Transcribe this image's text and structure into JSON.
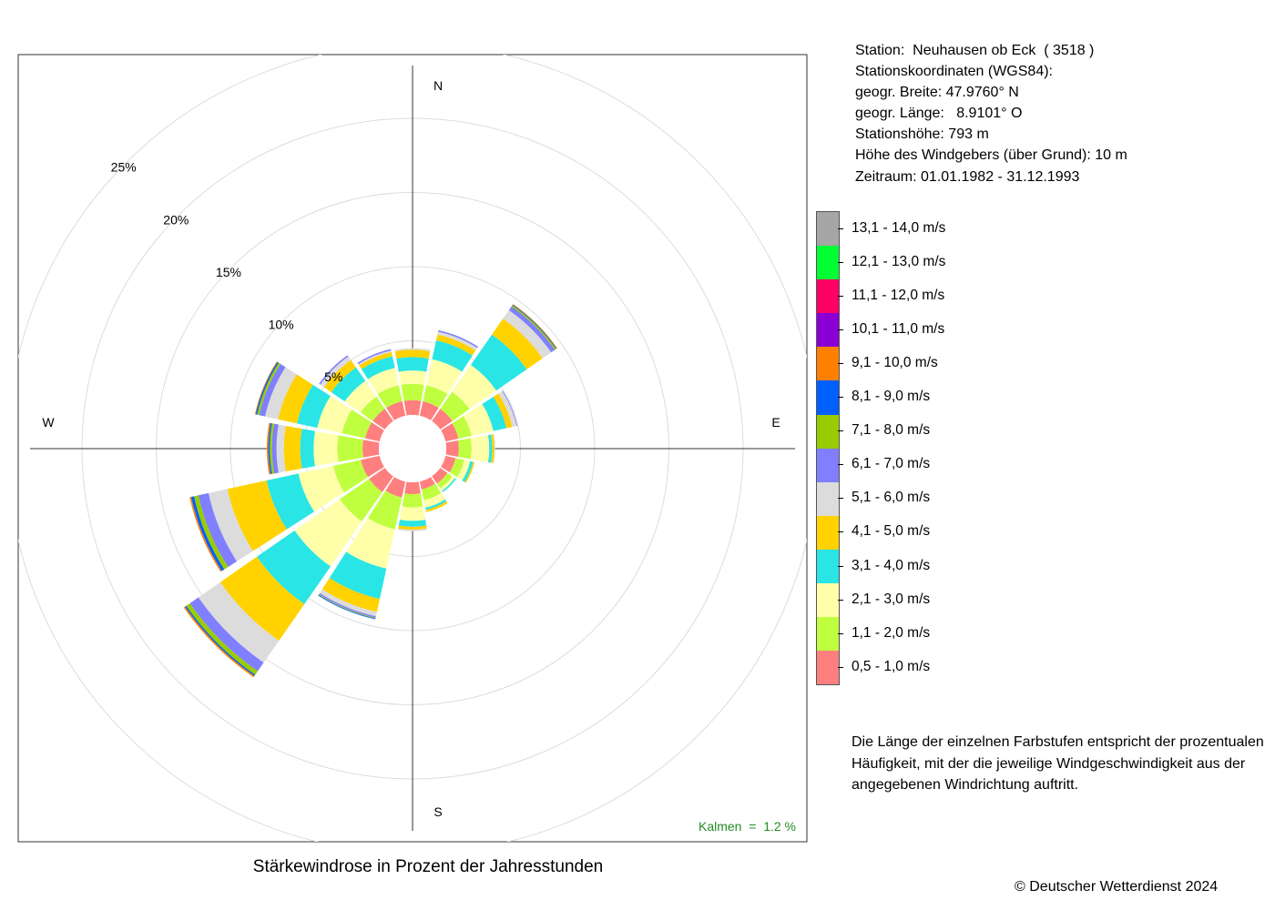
{
  "chart_data": {
    "type": "windrose",
    "title": "Stärkewindrose in Prozent der Jahresstunden",
    "directions": [
      "N",
      "NNO",
      "NO",
      "ONO",
      "O",
      "OSO",
      "SO",
      "SSO",
      "S",
      "SSW",
      "SW",
      "WSW",
      "W",
      "WNW",
      "NW",
      "NNW"
    ],
    "direction_labels": {
      "north": "N",
      "east": "E",
      "south": "S",
      "west": "W"
    },
    "radial_ticks": [
      "5%",
      "10%",
      "15%",
      "20%",
      "25%"
    ],
    "radial_tick_values": [
      5,
      10,
      15,
      20,
      25
    ],
    "speed_classes": [
      {
        "label": "0,5 - 1,0 m/s",
        "color": "#FF7F7F"
      },
      {
        "label": "1,1 - 2,0 m/s",
        "color": "#BFFF3F"
      },
      {
        "label": "2,1 - 3,0 m/s",
        "color": "#FFFFAA"
      },
      {
        "label": "3,1 - 4,0 m/s",
        "color": "#2AE5E5"
      },
      {
        "label": "4,1 - 5,0 m/s",
        "color": "#FFD200"
      },
      {
        "label": "5,1 - 6,0 m/s",
        "color": "#DCDCDC"
      },
      {
        "label": "6,1 - 7,0 m/s",
        "color": "#7F7FFF"
      },
      {
        "label": "7,1 - 8,0 m/s",
        "color": "#99CC00"
      },
      {
        "label": "8,1 - 9,0 m/s",
        "color": "#005FFF"
      },
      {
        "label": "9,1 - 10,0 m/s",
        "color": "#FF8000"
      },
      {
        "label": "10,1 - 11,0 m/s",
        "color": "#8A00D4"
      },
      {
        "label": "11,1 - 12,0 m/s",
        "color": "#FF0066"
      },
      {
        "label": "12,1 - 13,0 m/s",
        "color": "#00FF33"
      },
      {
        "label": "13,1 - 14,0 m/s",
        "color": "#A6A6A6"
      }
    ],
    "series": [
      {
        "direction": "N",
        "cumulative_percent": [
          1.0,
          2.1,
          3.0,
          3.9,
          4.4,
          4.5
        ]
      },
      {
        "direction": "NNO",
        "cumulative_percent": [
          1.0,
          2.1,
          3.9,
          5.2,
          5.6,
          5.8,
          5.9
        ]
      },
      {
        "direction": "NO",
        "cumulative_percent": [
          1.0,
          2.4,
          4.6,
          7.1,
          8.4,
          9.1,
          9.4,
          9.5,
          9.55,
          9.6
        ]
      },
      {
        "direction": "ONO",
        "cumulative_percent": [
          0.9,
          1.8,
          3.3,
          4.2,
          4.6,
          4.9,
          4.95
        ]
      },
      {
        "direction": "O",
        "cumulative_percent": [
          0.85,
          1.7,
          2.9,
          3.1,
          3.25,
          3.3
        ]
      },
      {
        "direction": "OSO",
        "cumulative_percent": [
          0.7,
          1.3,
          1.7,
          1.9,
          2.0
        ]
      },
      {
        "direction": "SO",
        "cumulative_percent": [
          0.6,
          1.0,
          1.2,
          1.3
        ]
      },
      {
        "direction": "SSO",
        "cumulative_percent": [
          0.55,
          1.3,
          1.8,
          1.95,
          2.1
        ]
      },
      {
        "direction": "S",
        "cumulative_percent": [
          0.8,
          1.7,
          2.6,
          3.0,
          3.2,
          3.3
        ]
      },
      {
        "direction": "SSW",
        "cumulative_percent": [
          1.1,
          3.3,
          6.0,
          8.1,
          9.0,
          9.3,
          9.4,
          9.45,
          9.5
        ]
      },
      {
        "direction": "SW",
        "cumulative_percent": [
          1.3,
          3.7,
          7.4,
          10.5,
          13.5,
          15.3,
          16.0,
          16.3,
          16.4,
          16.5
        ]
      },
      {
        "direction": "WSW",
        "cumulative_percent": [
          1.3,
          3.2,
          5.6,
          7.8,
          10.5,
          11.8,
          12.5,
          12.8,
          13.0,
          13.1
        ]
      },
      {
        "direction": "W",
        "cumulative_percent": [
          1.1,
          2.8,
          4.4,
          5.3,
          6.4,
          6.9,
          7.2,
          7.35,
          7.45,
          7.55
        ]
      },
      {
        "direction": "WNW",
        "cumulative_percent": [
          1.0,
          2.6,
          4.3,
          5.7,
          7.0,
          7.9,
          8.3,
          8.45,
          8.55,
          8.6
        ]
      },
      {
        "direction": "NW",
        "cumulative_percent": [
          1.0,
          2.0,
          3.3,
          4.4,
          5.0,
          5.3,
          5.4
        ]
      },
      {
        "direction": "NNW",
        "cumulative_percent": [
          1.0,
          2.1,
          3.3,
          4.1,
          4.4,
          4.5,
          4.6
        ]
      }
    ],
    "calm": {
      "label": "Kalmen  =  1.2 %",
      "value": 1.2,
      "color": "#228B22"
    }
  },
  "station": {
    "line1": "Station:  Neuhausen ob Eck  ( 3518 )",
    "line2": "Stationskoordinaten (WGS84):",
    "line3": "geogr. Breite: 47.9760° N",
    "line4": "geogr. Länge:   8.9101° O",
    "line5": "Stationshöhe: 793 m",
    "line6": "Höhe des Windgebers (über Grund): 10 m",
    "line7": "Zeitraum: 01.01.1982 - 31.12.1993"
  },
  "description": "Die Länge der einzelnen Farbstufen entspricht der prozentualen Häufigkeit, mit der die jeweilige Windgeschwindigkeit aus der angegebenen Windrichtung auftritt.",
  "copyright": "© Deutscher Wetterdienst  2024"
}
